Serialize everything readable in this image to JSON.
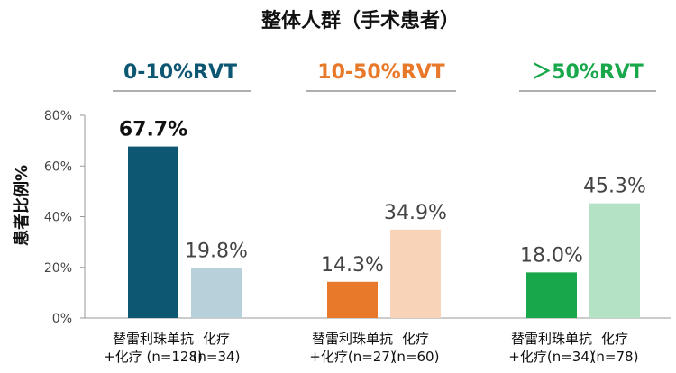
{
  "chart_data": {
    "type": "bar",
    "title": "整体人群（手术患者）",
    "ylabel": "患者比例%",
    "ylim": [
      0,
      80
    ],
    "yticks": [
      "0%",
      "20%",
      "40%",
      "60%",
      "80%"
    ],
    "groups": [
      {
        "name": "0-10%RVT",
        "color": "#0e5773",
        "bars": [
          {
            "value": 67.7,
            "label": "67.7%",
            "color": "#0e5773",
            "bold": true,
            "category_lines": [
              "替雷利珠单抗",
              "+化疗 (n=128)"
            ]
          },
          {
            "value": 19.8,
            "label": "19.8%",
            "color": "#b7d0d9",
            "bold": false,
            "category_lines": [
              "化疗",
              "(n=34)"
            ]
          }
        ]
      },
      {
        "name": "10-50%RVT",
        "color": "#e8782a",
        "bars": [
          {
            "value": 14.3,
            "label": "14.3%",
            "color": "#e8782a",
            "bold": false,
            "category_lines": [
              "替雷利珠单抗",
              "+化疗(n=27)"
            ]
          },
          {
            "value": 34.9,
            "label": "34.9%",
            "color": "#f8d3b8",
            "bold": false,
            "category_lines": [
              "化疗",
              "(n=60)"
            ]
          }
        ]
      },
      {
        "name": "＞50%RVT",
        "color": "#18a84b",
        "bars": [
          {
            "value": 18.0,
            "label": "18.0%",
            "color": "#18a84b",
            "bold": false,
            "category_lines": [
              "替雷利珠单抗",
              "+化疗(n=34)"
            ]
          },
          {
            "value": 45.3,
            "label": "45.3%",
            "color": "#b3e3c4",
            "bold": false,
            "category_lines": [
              "化疗",
              "(n=78)"
            ]
          }
        ]
      }
    ],
    "grid": false,
    "legend": "none"
  }
}
